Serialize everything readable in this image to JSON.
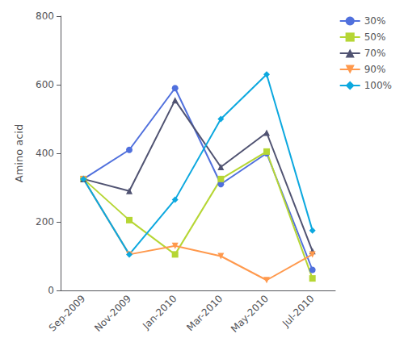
{
  "chart_data": {
    "type": "line",
    "categories": [
      "Sep-2009",
      "Nov-2009",
      "Jan-2010",
      "Mar-2010",
      "May-2010",
      "Jul-2010"
    ],
    "series": [
      {
        "name": "30%",
        "marker": "circle",
        "values": [
          325,
          410,
          590,
          310,
          400,
          60
        ]
      },
      {
        "name": "50%",
        "marker": "square",
        "values": [
          325,
          205,
          105,
          325,
          405,
          35
        ]
      },
      {
        "name": "70%",
        "marker": "triangle-up",
        "values": [
          325,
          290,
          555,
          360,
          460,
          115
        ]
      },
      {
        "name": "90%",
        "marker": "triangle-down",
        "values": [
          325,
          105,
          130,
          100,
          30,
          105
        ]
      },
      {
        "name": "100%",
        "marker": "diamond",
        "values": [
          325,
          105,
          265,
          500,
          630,
          175
        ]
      }
    ],
    "ylabel": "Amino acid",
    "ylim": [
      0,
      800
    ],
    "yticks": [
      0,
      200,
      400,
      600,
      800
    ],
    "grid": false,
    "legend": "upper right"
  }
}
